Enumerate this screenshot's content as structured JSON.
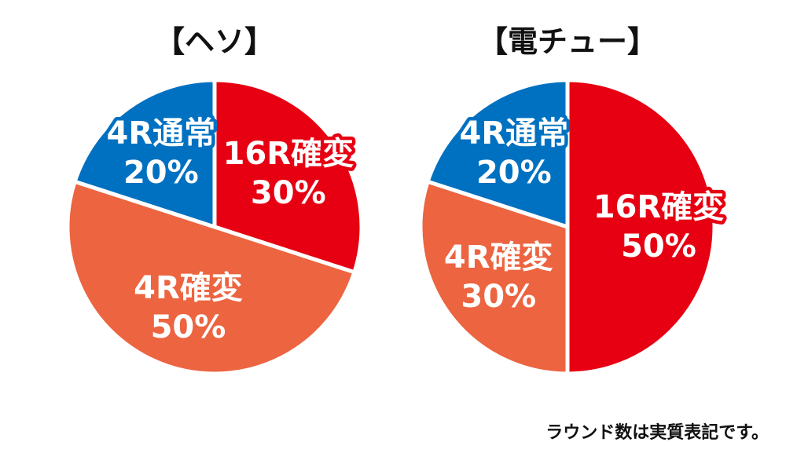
{
  "chart_data": [
    {
      "type": "pie",
      "title": "【ヘソ】",
      "slices": [
        {
          "category": "16R確変",
          "value": 30,
          "label": "30%",
          "color": "#e60012"
        },
        {
          "category": "4R確変",
          "value": 50,
          "label": "50%",
          "color": "#ec6440"
        },
        {
          "category": "4R通常",
          "value": 20,
          "label": "20%",
          "color": "#0071c1"
        }
      ]
    },
    {
      "type": "pie",
      "title": "【電チュー】",
      "slices": [
        {
          "category": "16R確変",
          "value": 50,
          "label": "50%",
          "color": "#e60012"
        },
        {
          "category": "4R確変",
          "value": 30,
          "label": "30%",
          "color": "#ec6440"
        },
        {
          "category": "4R通常",
          "value": 20,
          "label": "20%",
          "color": "#0071c1"
        }
      ]
    }
  ],
  "footnote": "ラウンド数は実質表記です。"
}
